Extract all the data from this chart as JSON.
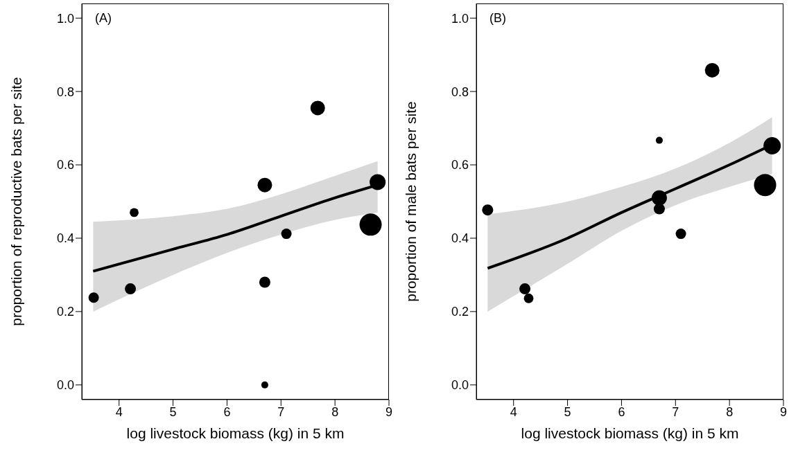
{
  "chart_data": [
    {
      "type": "bubble",
      "annotations": [
        "(A)"
      ],
      "xlabel": "log livestock biomass (kg) in 5 km",
      "ylabel": "proportion of reproductive bats per site",
      "xlim": [
        3.31,
        9.0
      ],
      "xticks": [
        4,
        5,
        6,
        7,
        8,
        9
      ],
      "ylim": [
        -0.04,
        1.04
      ],
      "yticks": [
        {
          "value": 0,
          "label": "0.0"
        },
        {
          "value": 0.2,
          "label": "0.2"
        },
        {
          "value": 0.4,
          "label": "0.4"
        },
        {
          "value": 0.6,
          "label": "0.6"
        },
        {
          "value": 0.8,
          "label": "0.8"
        },
        {
          "value": 1,
          "label": "1.0"
        }
      ],
      "grid": false,
      "legend": false,
      "series": [
        {
          "type": "line",
          "color": "#000000",
          "x": [
            3.52,
            5,
            6,
            7,
            8,
            8.79
          ],
          "values": [
            0.31,
            0.37,
            0.41,
            0.46,
            0.51,
            0.545
          ],
          "lower": [
            0.2,
            0.3,
            0.36,
            0.41,
            0.45,
            0.47
          ],
          "upper": [
            0.445,
            0.46,
            0.48,
            0.52,
            0.57,
            0.61
          ]
        },
        {
          "color": "#000000",
          "x": [
            3.53,
            4.21,
            4.28,
            6.7,
            6.7,
            6.7,
            7.1,
            7.68,
            8.79,
            8.66
          ],
          "values": [
            0.238,
            0.262,
            0.47,
            0.545,
            0.28,
            0.0,
            0.412,
            0.755,
            0.553,
            0.437
          ],
          "sizes": [
            0.22,
            0.25,
            0.16,
            0.43,
            0.25,
            0.1,
            0.22,
            0.43,
            0.52,
            1
          ]
        }
      ]
    },
    {
      "type": "bubble",
      "annotations": [
        "(B)"
      ],
      "xlabel": "log livestock biomass (kg) in 5 km",
      "ylabel": "proportion of male bats per site",
      "xlim": [
        3.31,
        9.0
      ],
      "xticks": [
        4,
        5,
        6,
        7,
        8,
        9
      ],
      "ylim": [
        -0.04,
        1.04
      ],
      "yticks": [
        {
          "value": 0,
          "label": "0.0"
        },
        {
          "value": 0.2,
          "label": "0.2"
        },
        {
          "value": 0.4,
          "label": "0.4"
        },
        {
          "value": 0.6,
          "label": "0.6"
        },
        {
          "value": 0.8,
          "label": "0.8"
        },
        {
          "value": 1,
          "label": "1.0"
        }
      ],
      "grid": false,
      "legend": false,
      "series": [
        {
          "type": "line",
          "color": "#000000",
          "x": [
            3.52,
            5,
            6,
            7,
            8,
            8.79
          ],
          "values": [
            0.318,
            0.4,
            0.47,
            0.535,
            0.6,
            0.655
          ],
          "lower": [
            0.2,
            0.33,
            0.42,
            0.49,
            0.54,
            0.575
          ],
          "upper": [
            0.465,
            0.5,
            0.54,
            0.59,
            0.66,
            0.73
          ]
        },
        {
          "color": "#000000",
          "x": [
            3.52,
            4.21,
            4.28,
            6.7,
            6.7,
            6.7,
            7.1,
            7.68,
            8.79,
            8.66
          ],
          "values": [
            0.477,
            0.262,
            0.236,
            0.51,
            0.48,
            0.667,
            0.412,
            0.858,
            0.652,
            0.545
          ],
          "sizes": [
            0.25,
            0.25,
            0.19,
            0.47,
            0.25,
            0.1,
            0.22,
            0.43,
            0.61,
            1
          ]
        }
      ]
    }
  ]
}
